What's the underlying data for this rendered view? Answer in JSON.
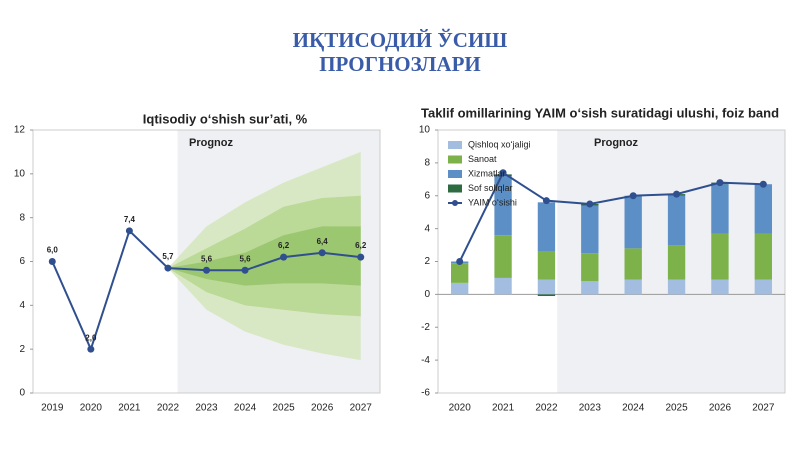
{
  "title": [
    "ИҚТИСОДИЙ ЎСИШ",
    "ПРОГНОЗЛАРИ"
  ],
  "chart_data": [
    {
      "type": "line",
      "title": "Iqtisodiy o‘shish sur’ati, %",
      "categories": [
        "2019",
        "2020",
        "2021",
        "2022",
        "2023",
        "2024",
        "2025",
        "2026",
        "2027"
      ],
      "values": [
        6.0,
        2.0,
        7.4,
        5.7,
        5.6,
        5.6,
        6.2,
        6.4,
        6.2
      ],
      "value_labels": [
        "6,0",
        "2,0",
        "7,4",
        "5,7",
        "5,6",
        "5,6",
        "6,2",
        "6,4",
        "6,2"
      ],
      "color": "#2f4f8f",
      "forecast": {
        "label": "Prognoz",
        "start": "2023",
        "color": "#eef0f4"
      },
      "fan": [
        {
          "color": "#d3e6b8",
          "lower": [
            null,
            null,
            null,
            5.7,
            3.8,
            2.8,
            2.2,
            1.8,
            1.5
          ],
          "upper": [
            null,
            null,
            null,
            5.7,
            7.6,
            8.7,
            9.6,
            10.3,
            11.0
          ]
        },
        {
          "color": "#b3d58c",
          "lower": [
            null,
            null,
            null,
            5.7,
            4.6,
            4.0,
            3.8,
            3.6,
            3.5
          ],
          "upper": [
            null,
            null,
            null,
            5.7,
            6.6,
            7.5,
            8.5,
            8.9,
            9.0
          ]
        },
        {
          "color": "#94c266",
          "lower": [
            null,
            null,
            null,
            5.7,
            5.2,
            4.9,
            5.0,
            5.0,
            4.9
          ],
          "upper": [
            null,
            null,
            null,
            5.7,
            6.0,
            6.4,
            7.2,
            7.6,
            7.6
          ]
        }
      ],
      "ylim": [
        0,
        12
      ],
      "yticks": [
        0,
        2,
        4,
        6,
        8,
        10,
        12
      ]
    },
    {
      "type": "bar",
      "title": "Taklif omillarining YAIM o‘sish suratidagi ulushi, foiz band",
      "categories": [
        "2020",
        "2021",
        "2022",
        "2023",
        "2024",
        "2025",
        "2026",
        "2027"
      ],
      "forecast": {
        "label": "Prognoz",
        "start": "2023",
        "color": "#eef0f4"
      },
      "series": [
        {
          "name": "Qishloq xo‘jaligi",
          "color": "#a3bde0",
          "values": [
            0.7,
            1.0,
            0.9,
            0.8,
            0.9,
            0.9,
            0.9,
            0.9
          ]
        },
        {
          "name": "Sanoat",
          "color": "#7db24a",
          "values": [
            1.2,
            2.6,
            1.7,
            1.7,
            1.9,
            2.1,
            2.8,
            2.8
          ]
        },
        {
          "name": "Xizmatlar",
          "color": "#5b8fc6",
          "values": [
            0.1,
            3.6,
            3.0,
            2.9,
            3.2,
            3.0,
            3.0,
            3.0
          ]
        },
        {
          "name": "Sof soliqlar",
          "color": "#2e6b40",
          "values": [
            0.0,
            0.1,
            -0.1,
            0.1,
            0.0,
            0.1,
            0.1,
            0.0
          ]
        },
        {
          "name": "YAIM o‘sishi",
          "color": "#2f4f8f",
          "type": "line",
          "values": [
            2.0,
            7.4,
            5.7,
            5.5,
            6.0,
            6.1,
            6.8,
            6.7
          ]
        }
      ],
      "legend": "upper left",
      "ylim": [
        -6,
        10
      ],
      "yticks": [
        -6,
        -4,
        -2,
        0,
        2,
        4,
        6,
        8,
        10
      ]
    }
  ]
}
